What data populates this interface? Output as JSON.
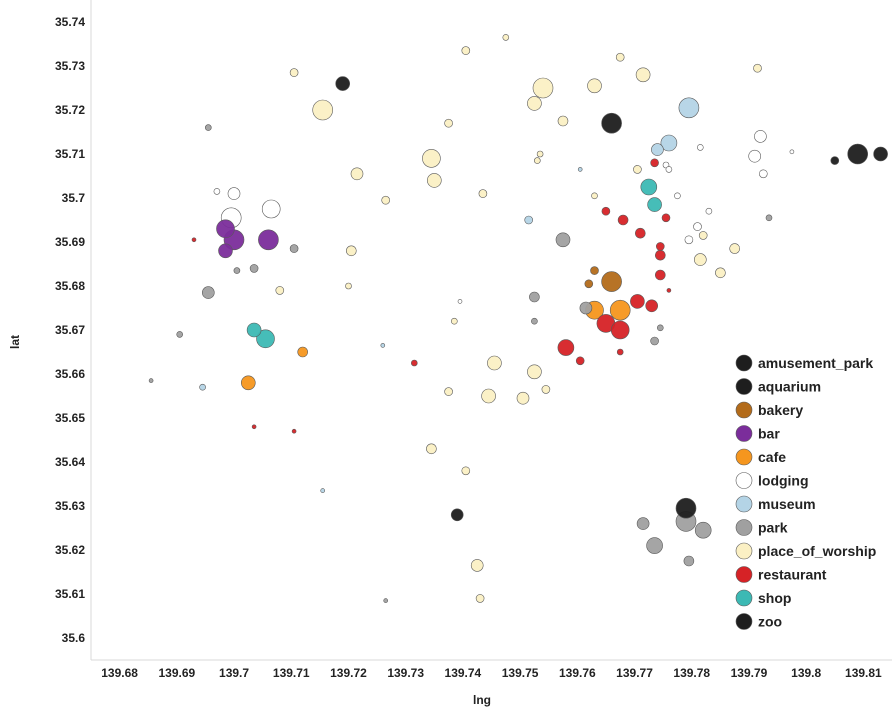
{
  "chart_data": {
    "type": "scatter",
    "title": "",
    "xlabel": "lng",
    "ylabel": "lat",
    "xlim": [
      139.675,
      139.815
    ],
    "ylim": [
      35.595,
      35.745
    ],
    "xticks": [
      "139.68",
      "139.69",
      "139.7",
      "139.71",
      "139.72",
      "139.73",
      "139.74",
      "139.75",
      "139.76",
      "139.77",
      "139.78",
      "139.79",
      "139.8",
      "139.81"
    ],
    "yticks": [
      "35.6",
      "35.61",
      "35.62",
      "35.63",
      "35.64",
      "35.65",
      "35.66",
      "35.67",
      "35.68",
      "35.69",
      "35.7",
      "35.71",
      "35.72",
      "35.73",
      "35.74"
    ],
    "legend_position": "bottom-right",
    "marker_size_encoding": "bubble size varies per point",
    "series": [
      {
        "name": "amusement_park",
        "color": "#1e1e1e",
        "points": [
          {
            "x": 139.719,
            "y": 35.726,
            "s": 7
          },
          {
            "x": 139.766,
            "y": 35.717,
            "s": 10
          }
        ]
      },
      {
        "name": "aquarium",
        "color": "#1e1e1e",
        "points": [
          {
            "x": 139.809,
            "y": 35.71,
            "s": 10
          },
          {
            "x": 139.813,
            "y": 35.71,
            "s": 7
          },
          {
            "x": 139.805,
            "y": 35.7085,
            "s": 4
          }
        ]
      },
      {
        "name": "bakery",
        "color": "#b36b1a",
        "points": [
          {
            "x": 139.766,
            "y": 35.681,
            "s": 10
          },
          {
            "x": 139.763,
            "y": 35.6835,
            "s": 4
          },
          {
            "x": 139.762,
            "y": 35.6805,
            "s": 4
          }
        ]
      },
      {
        "name": "bar",
        "color": "#7b2d9b",
        "points": [
          {
            "x": 139.6985,
            "y": 35.693,
            "s": 9
          },
          {
            "x": 139.7,
            "y": 35.6905,
            "s": 10
          },
          {
            "x": 139.706,
            "y": 35.6905,
            "s": 10
          },
          {
            "x": 139.6985,
            "y": 35.688,
            "s": 7
          }
        ]
      },
      {
        "name": "cafe",
        "color": "#f5961e",
        "points": [
          {
            "x": 139.763,
            "y": 35.6745,
            "s": 9
          },
          {
            "x": 139.7675,
            "y": 35.6745,
            "s": 10
          },
          {
            "x": 139.712,
            "y": 35.665,
            "s": 5
          },
          {
            "x": 139.7025,
            "y": 35.658,
            "s": 7
          }
        ]
      },
      {
        "name": "lodging",
        "color": "#ffffff",
        "points": [
          {
            "x": 139.7065,
            "y": 35.6975,
            "s": 9
          },
          {
            "x": 139.6995,
            "y": 35.6955,
            "s": 10
          },
          {
            "x": 139.7,
            "y": 35.701,
            "s": 6
          },
          {
            "x": 139.697,
            "y": 35.7015,
            "s": 3
          },
          {
            "x": 139.792,
            "y": 35.714,
            "s": 6
          },
          {
            "x": 139.791,
            "y": 35.7095,
            "s": 6
          },
          {
            "x": 139.7925,
            "y": 35.7055,
            "s": 4
          },
          {
            "x": 139.7975,
            "y": 35.7105,
            "s": 2
          },
          {
            "x": 139.7815,
            "y": 35.7115,
            "s": 3
          },
          {
            "x": 139.7755,
            "y": 35.7075,
            "s": 3
          },
          {
            "x": 139.776,
            "y": 35.7065,
            "s": 3
          },
          {
            "x": 139.7775,
            "y": 35.7005,
            "s": 3
          },
          {
            "x": 139.783,
            "y": 35.697,
            "s": 3
          },
          {
            "x": 139.781,
            "y": 35.6935,
            "s": 4
          },
          {
            "x": 139.7795,
            "y": 35.6905,
            "s": 4
          },
          {
            "x": 139.7395,
            "y": 35.6765,
            "s": 2
          }
        ]
      },
      {
        "name": "museum",
        "color": "#b4d4e6",
        "points": [
          {
            "x": 139.7795,
            "y": 35.7205,
            "s": 10
          },
          {
            "x": 139.776,
            "y": 35.7125,
            "s": 8
          },
          {
            "x": 139.774,
            "y": 35.711,
            "s": 6
          },
          {
            "x": 139.7515,
            "y": 35.695,
            "s": 4
          },
          {
            "x": 139.7605,
            "y": 35.7065,
            "s": 2
          },
          {
            "x": 139.726,
            "y": 35.6665,
            "s": 2
          },
          {
            "x": 139.6945,
            "y": 35.657,
            "s": 3
          },
          {
            "x": 139.7155,
            "y": 35.6335,
            "s": 2
          }
        ]
      },
      {
        "name": "park",
        "color": "#a0a0a0",
        "points": [
          {
            "x": 139.7575,
            "y": 35.6905,
            "s": 7
          },
          {
            "x": 139.6955,
            "y": 35.6785,
            "s": 6
          },
          {
            "x": 139.7035,
            "y": 35.684,
            "s": 4
          },
          {
            "x": 139.7105,
            "y": 35.6885,
            "s": 4
          },
          {
            "x": 139.7005,
            "y": 35.6835,
            "s": 3
          },
          {
            "x": 139.7525,
            "y": 35.6775,
            "s": 5
          },
          {
            "x": 139.7525,
            "y": 35.672,
            "s": 3
          },
          {
            "x": 139.7615,
            "y": 35.675,
            "s": 6
          },
          {
            "x": 139.6955,
            "y": 35.716,
            "s": 3
          },
          {
            "x": 139.7935,
            "y": 35.6955,
            "s": 3
          },
          {
            "x": 139.7745,
            "y": 35.6705,
            "s": 3
          },
          {
            "x": 139.7735,
            "y": 35.6675,
            "s": 4
          },
          {
            "x": 139.6905,
            "y": 35.669,
            "s": 3
          },
          {
            "x": 139.6855,
            "y": 35.6585,
            "s": 2
          },
          {
            "x": 139.7715,
            "y": 35.626,
            "s": 6
          },
          {
            "x": 139.779,
            "y": 35.6265,
            "s": 10
          },
          {
            "x": 139.782,
            "y": 35.6245,
            "s": 8
          },
          {
            "x": 139.7735,
            "y": 35.621,
            "s": 8
          },
          {
            "x": 139.7795,
            "y": 35.6175,
            "s": 5
          },
          {
            "x": 139.7265,
            "y": 35.6085,
            "s": 2
          }
        ]
      },
      {
        "name": "place_of_worship",
        "color": "#fbf0c4",
        "points": [
          {
            "x": 139.754,
            "y": 35.725,
            "s": 10
          },
          {
            "x": 139.763,
            "y": 35.7255,
            "s": 7
          },
          {
            "x": 139.7715,
            "y": 35.728,
            "s": 7
          },
          {
            "x": 139.7525,
            "y": 35.7215,
            "s": 7
          },
          {
            "x": 139.7155,
            "y": 35.72,
            "s": 10
          },
          {
            "x": 139.7345,
            "y": 35.709,
            "s": 9
          },
          {
            "x": 139.735,
            "y": 35.704,
            "s": 7
          },
          {
            "x": 139.7215,
            "y": 35.7055,
            "s": 6
          },
          {
            "x": 139.7105,
            "y": 35.7285,
            "s": 4
          },
          {
            "x": 139.7405,
            "y": 35.7335,
            "s": 4
          },
          {
            "x": 139.7475,
            "y": 35.7365,
            "s": 3
          },
          {
            "x": 139.7675,
            "y": 35.732,
            "s": 4
          },
          {
            "x": 139.7915,
            "y": 35.7295,
            "s": 4
          },
          {
            "x": 139.7375,
            "y": 35.717,
            "s": 4
          },
          {
            "x": 139.7575,
            "y": 35.7175,
            "s": 5
          },
          {
            "x": 139.7535,
            "y": 35.71,
            "s": 3
          },
          {
            "x": 139.753,
            "y": 35.7085,
            "s": 3
          },
          {
            "x": 139.7435,
            "y": 35.701,
            "s": 4
          },
          {
            "x": 139.7265,
            "y": 35.6995,
            "s": 4
          },
          {
            "x": 139.7205,
            "y": 35.688,
            "s": 5
          },
          {
            "x": 139.763,
            "y": 35.7005,
            "s": 3
          },
          {
            "x": 139.7705,
            "y": 35.7065,
            "s": 4
          },
          {
            "x": 139.782,
            "y": 35.6915,
            "s": 4
          },
          {
            "x": 139.7875,
            "y": 35.6885,
            "s": 5
          },
          {
            "x": 139.7815,
            "y": 35.686,
            "s": 6
          },
          {
            "x": 139.785,
            "y": 35.683,
            "s": 5
          },
          {
            "x": 139.72,
            "y": 35.68,
            "s": 3
          },
          {
            "x": 139.708,
            "y": 35.679,
            "s": 4
          },
          {
            "x": 139.7385,
            "y": 35.672,
            "s": 3
          },
          {
            "x": 139.7455,
            "y": 35.6625,
            "s": 7
          },
          {
            "x": 139.7525,
            "y": 35.6605,
            "s": 7
          },
          {
            "x": 139.7445,
            "y": 35.655,
            "s": 7
          },
          {
            "x": 139.7505,
            "y": 35.6545,
            "s": 6
          },
          {
            "x": 139.7545,
            "y": 35.6565,
            "s": 4
          },
          {
            "x": 139.7375,
            "y": 35.656,
            "s": 4
          },
          {
            "x": 139.7345,
            "y": 35.643,
            "s": 5
          },
          {
            "x": 139.7405,
            "y": 35.638,
            "s": 4
          },
          {
            "x": 139.7425,
            "y": 35.6165,
            "s": 6
          },
          {
            "x": 139.743,
            "y": 35.609,
            "s": 4
          }
        ]
      },
      {
        "name": "restaurant",
        "color": "#d62226",
        "points": [
          {
            "x": 139.7735,
            "y": 35.708,
            "s": 4
          },
          {
            "x": 139.765,
            "y": 35.697,
            "s": 4
          },
          {
            "x": 139.768,
            "y": 35.695,
            "s": 5
          },
          {
            "x": 139.771,
            "y": 35.692,
            "s": 5
          },
          {
            "x": 139.7755,
            "y": 35.6955,
            "s": 4
          },
          {
            "x": 139.7745,
            "y": 35.689,
            "s": 4
          },
          {
            "x": 139.7745,
            "y": 35.687,
            "s": 5
          },
          {
            "x": 139.7745,
            "y": 35.6825,
            "s": 5
          },
          {
            "x": 139.776,
            "y": 35.679,
            "s": 2
          },
          {
            "x": 139.7705,
            "y": 35.6765,
            "s": 7
          },
          {
            "x": 139.773,
            "y": 35.6755,
            "s": 6
          },
          {
            "x": 139.765,
            "y": 35.6715,
            "s": 9
          },
          {
            "x": 139.7675,
            "y": 35.67,
            "s": 9
          },
          {
            "x": 139.758,
            "y": 35.666,
            "s": 8
          },
          {
            "x": 139.7605,
            "y": 35.663,
            "s": 4
          },
          {
            "x": 139.7675,
            "y": 35.665,
            "s": 3
          },
          {
            "x": 139.7315,
            "y": 35.6625,
            "s": 3
          },
          {
            "x": 139.693,
            "y": 35.6905,
            "s": 2
          },
          {
            "x": 139.7035,
            "y": 35.648,
            "s": 2
          },
          {
            "x": 139.7105,
            "y": 35.647,
            "s": 2
          }
        ]
      },
      {
        "name": "shop",
        "color": "#3cb9b4",
        "points": [
          {
            "x": 139.7725,
            "y": 35.7025,
            "s": 8
          },
          {
            "x": 139.7735,
            "y": 35.6985,
            "s": 7
          },
          {
            "x": 139.7035,
            "y": 35.67,
            "s": 7
          },
          {
            "x": 139.7055,
            "y": 35.668,
            "s": 9
          }
        ]
      },
      {
        "name": "zoo",
        "color": "#1e1e1e",
        "points": [
          {
            "x": 139.779,
            "y": 35.6295,
            "s": 10
          },
          {
            "x": 139.739,
            "y": 35.628,
            "s": 6
          }
        ]
      }
    ]
  }
}
